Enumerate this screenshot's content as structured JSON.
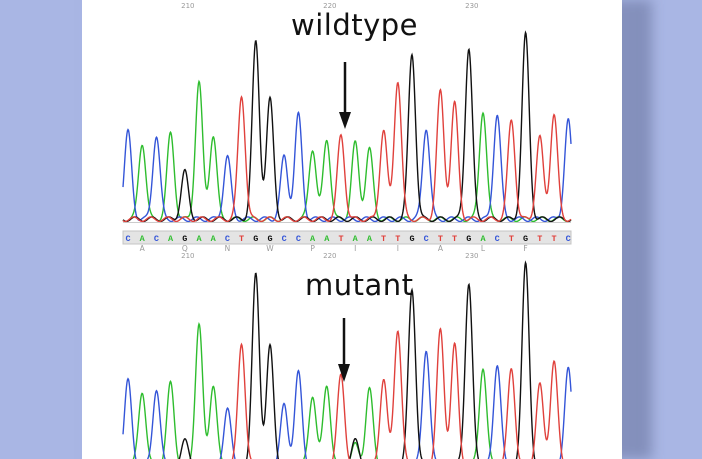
{
  "labels": {
    "top": "wildtype",
    "bottom": "mutant"
  },
  "ruler": {
    "top_ticks": [
      "210",
      "220",
      "230"
    ],
    "mid_ticks": [
      "210",
      "220",
      "230"
    ]
  },
  "sequence": [
    "C",
    "A",
    "C",
    "A",
    "G",
    "A",
    "A",
    "C",
    "T",
    "G",
    "G",
    "C",
    "C",
    "A",
    "A",
    "T",
    "A",
    "A",
    "T",
    "T",
    "G",
    "C",
    "T",
    "T",
    "G",
    "A",
    "C",
    "T",
    "G",
    "T",
    "T",
    "C"
  ],
  "amino_acids": [
    "A",
    "Q",
    "N",
    "W",
    "P",
    "I",
    "I",
    "A",
    "L",
    "F"
  ],
  "colors": {
    "A": "#2ebd2e",
    "C": "#3455d8",
    "G": "#111111",
    "T": "#e0413c",
    "background": "#a9b6e4",
    "panel": "#ffffff"
  },
  "chart_data": [
    {
      "type": "line",
      "title": "wildtype",
      "xlabel": "",
      "ylabel": "",
      "bases": [
        "C",
        "A",
        "C",
        "A",
        "G",
        "A",
        "A",
        "C",
        "T",
        "G",
        "G",
        "C",
        "C",
        "A",
        "A",
        "T",
        "A",
        "A",
        "T",
        "T",
        "G",
        "C",
        "T",
        "T",
        "G",
        "A",
        "C",
        "T",
        "G",
        "T",
        "T",
        "C"
      ],
      "peak_heights": [
        0.46,
        0.4,
        0.44,
        0.45,
        0.25,
        0.72,
        0.44,
        0.33,
        0.65,
        0.93,
        0.63,
        0.33,
        0.55,
        0.37,
        0.42,
        0.44,
        0.4,
        0.37,
        0.47,
        0.73,
        0.87,
        0.48,
        0.67,
        0.61,
        0.9,
        0.57,
        0.55,
        0.52,
        0.97,
        0.43,
        0.55,
        0.52
      ],
      "grid": false
    },
    {
      "type": "line",
      "title": "mutant",
      "xlabel": "",
      "ylabel": "",
      "bases": [
        "C",
        "A",
        "C",
        "A",
        "G",
        "A",
        "A",
        "C",
        "T",
        "G",
        "G",
        "C",
        "C",
        "A",
        "A",
        "T",
        "A",
        "A",
        "T",
        "T",
        "G",
        "C",
        "T",
        "T",
        "G",
        "A",
        "C",
        "T",
        "G",
        "T",
        "T",
        "C"
      ],
      "peak_heights": [
        0.42,
        0.37,
        0.38,
        0.41,
        0.12,
        0.7,
        0.4,
        0.28,
        0.61,
        0.95,
        0.59,
        0.3,
        0.46,
        0.35,
        0.4,
        0.45,
        0.1,
        0.38,
        0.43,
        0.68,
        0.88,
        0.58,
        0.67,
        0.6,
        0.91,
        0.49,
        0.5,
        0.48,
        1.0,
        0.4,
        0.52,
        0.48
      ],
      "secondary_peak": {
        "position": 16,
        "base": "G",
        "height": 0.12
      },
      "grid": false
    }
  ]
}
